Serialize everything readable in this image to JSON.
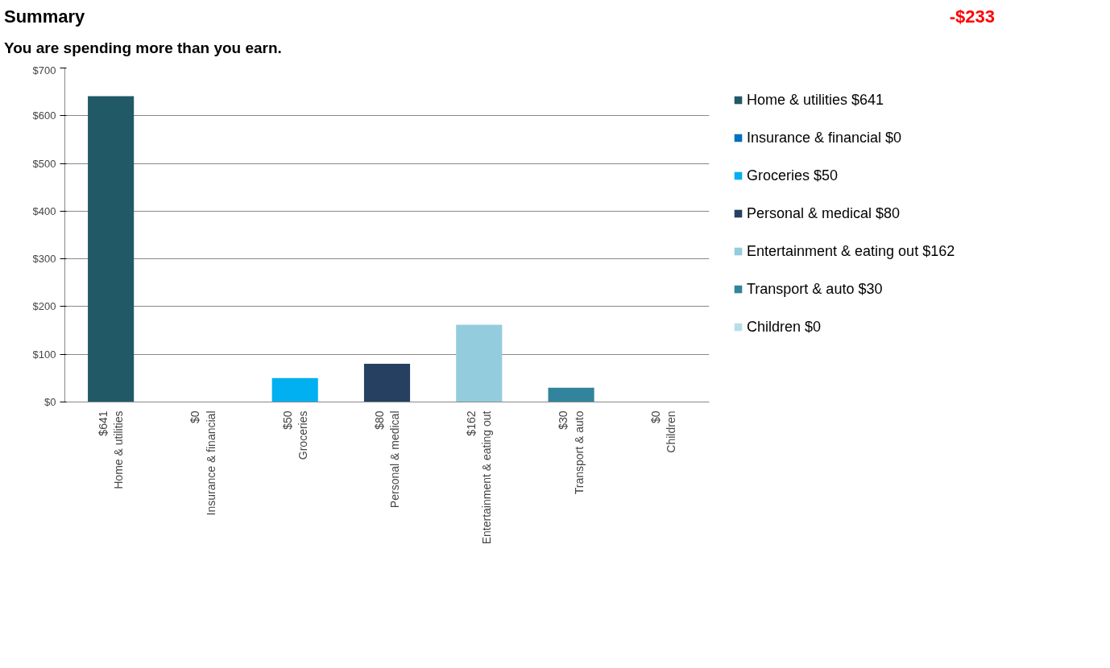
{
  "chart_data": {
    "type": "bar",
    "title": "Summary",
    "subtitle": "You are spending more than you earn.",
    "annotations": [
      "-$233"
    ],
    "categories": [
      "$641\nHome & utilities",
      "$0\nInsurance & financial",
      "$50\nGroceries",
      "$80\nPersonal & medical",
      "$162\nEntertainment & eating out",
      "$30\nTransport & auto",
      "$0\nChildren"
    ],
    "series": [
      {
        "name": "Home & utilities $641",
        "color": "#215967",
        "values": [
          641,
          null,
          null,
          null,
          null,
          null,
          null
        ]
      },
      {
        "name": "Insurance & financial $0",
        "color": "#0070c0",
        "values": [
          null,
          0,
          null,
          null,
          null,
          null,
          null
        ]
      },
      {
        "name": "Groceries $50",
        "color": "#00b0f0",
        "values": [
          null,
          null,
          50,
          null,
          null,
          null,
          null
        ]
      },
      {
        "name": "Personal & medical $80",
        "color": "#254061",
        "values": [
          null,
          null,
          null,
          80,
          null,
          null,
          null
        ]
      },
      {
        "name": "Entertainment & eating out $162",
        "color": "#93cddd",
        "values": [
          null,
          null,
          null,
          null,
          162,
          null,
          null
        ]
      },
      {
        "name": "Transport & auto $30",
        "color": "#31849b",
        "values": [
          null,
          null,
          null,
          null,
          null,
          30,
          null
        ]
      },
      {
        "name": "Children $0",
        "color": "#b7dee8",
        "values": [
          null,
          null,
          null,
          null,
          null,
          null,
          0
        ]
      }
    ],
    "ylim": [
      0,
      700
    ],
    "yticks": [
      {
        "value": 0,
        "label": "$0"
      },
      {
        "value": 100,
        "label": "$100"
      },
      {
        "value": 200,
        "label": "$200"
      },
      {
        "value": 300,
        "label": "$300"
      },
      {
        "value": 400,
        "label": "$400"
      },
      {
        "value": 500,
        "label": "$500"
      },
      {
        "value": 600,
        "label": "$600"
      },
      {
        "value": 700,
        "label": "$700"
      }
    ],
    "grid": "y",
    "legend": "right"
  }
}
